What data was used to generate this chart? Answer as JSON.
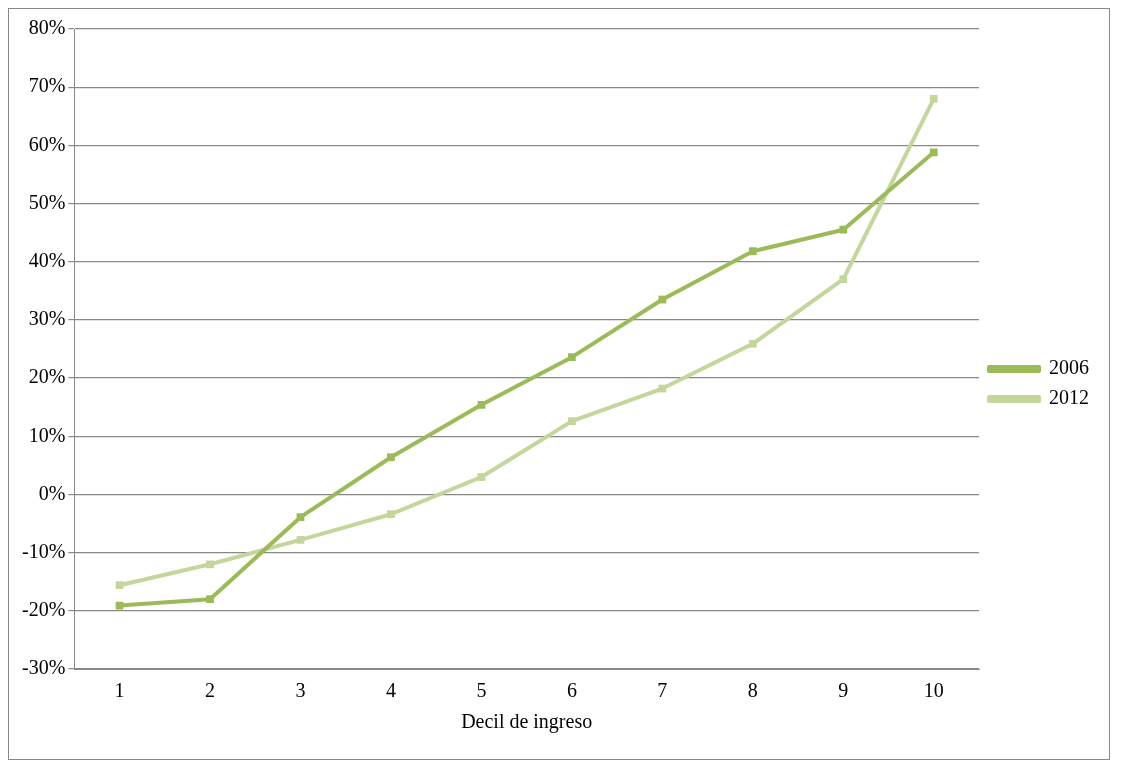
{
  "chart_data": {
    "type": "line",
    "xlabel": "Decil de ingreso",
    "categories": [
      "1",
      "2",
      "3",
      "4",
      "5",
      "6",
      "7",
      "8",
      "9",
      "10"
    ],
    "series": [
      {
        "name": "2006",
        "color": "#9bbb59",
        "values": [
          -19.1,
          -18,
          -3.9,
          6.4,
          15.4,
          23.6,
          33.5,
          41.8,
          45.5,
          58.8
        ]
      },
      {
        "name": "2012",
        "color": "#c3d69b",
        "values": [
          -15.6,
          -12,
          -7.8,
          -3.4,
          3.0,
          12.6,
          18.2,
          25.9,
          37,
          68
        ]
      }
    ],
    "ylim": [
      -30,
      80
    ],
    "yticks": [
      {
        "value": -30,
        "label": "-30%"
      },
      {
        "value": -20,
        "label": "-20%"
      },
      {
        "value": -10,
        "label": "-10%"
      },
      {
        "value": 0,
        "label": "0%"
      },
      {
        "value": 10,
        "label": "10%"
      },
      {
        "value": 20,
        "label": "20%"
      },
      {
        "value": 30,
        "label": "30%"
      },
      {
        "value": 40,
        "label": "40%"
      },
      {
        "value": 50,
        "label": "50%"
      },
      {
        "value": 60,
        "label": "60%"
      },
      {
        "value": 70,
        "label": "70%"
      },
      {
        "value": 80,
        "label": "80%"
      }
    ],
    "grid": "y",
    "legend": "right",
    "marker": "square",
    "line_style": "solid"
  }
}
